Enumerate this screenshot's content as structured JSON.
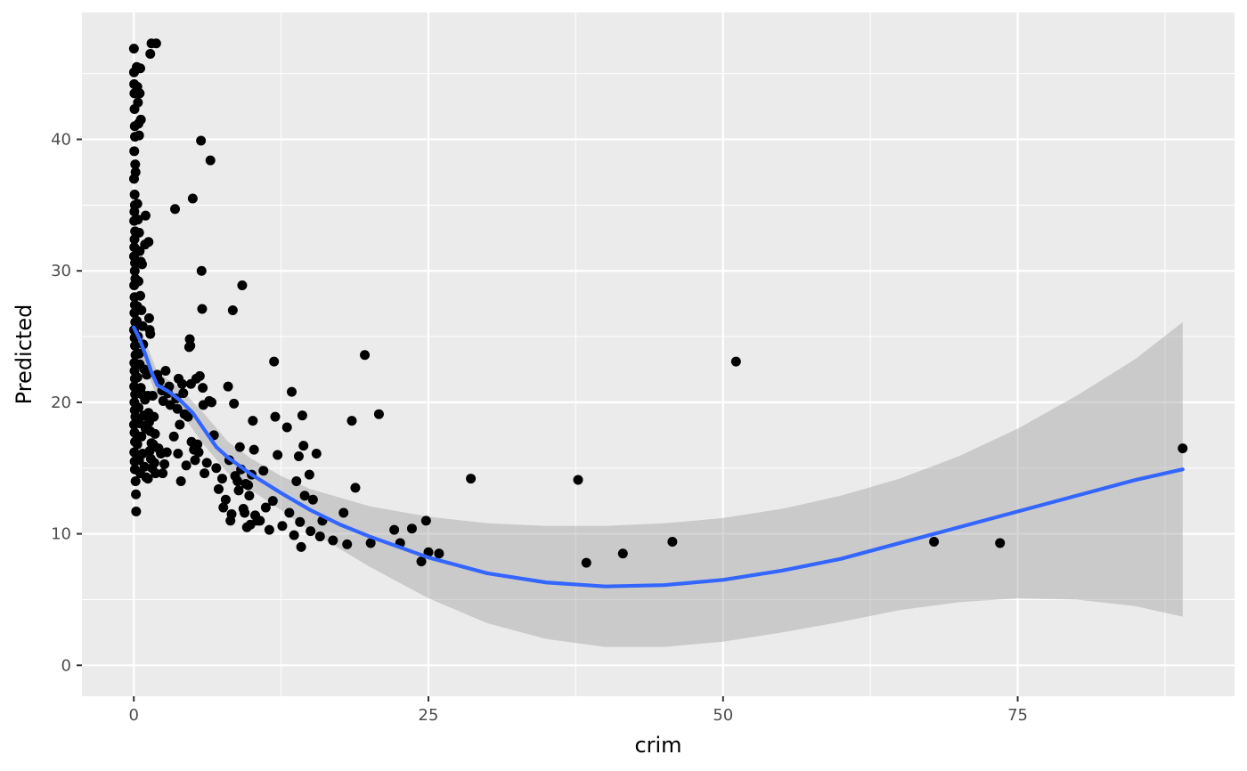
{
  "chart_data": {
    "type": "scatter",
    "xlabel": "crim",
    "ylabel": "Predicted",
    "xlim": [
      -4.4,
      93.4
    ],
    "ylim": [
      -2.35,
      49.65
    ],
    "x_ticks": [
      0,
      25,
      50,
      75
    ],
    "x_tick_labels": [
      "0",
      "25",
      "50",
      "75"
    ],
    "x_minor_ticks": [
      12.5,
      37.5,
      62.5,
      87.5
    ],
    "y_ticks": [
      0,
      10,
      20,
      30,
      40
    ],
    "y_tick_labels": [
      "0",
      "10",
      "20",
      "30",
      "40"
    ],
    "y_minor_ticks": [
      5,
      15,
      25,
      35,
      45
    ],
    "grid": true,
    "colors": {
      "panel": "#ebebeb",
      "grid": "#ffffff",
      "points": "#000000",
      "smooth_line": "#3366ff",
      "ribbon": "#999999"
    },
    "points": [
      [
        0.01,
        46.9
      ],
      [
        0.02,
        45.1
      ],
      [
        0.03,
        44.2
      ],
      [
        0.05,
        43.5
      ],
      [
        0.06,
        42.3
      ],
      [
        0.08,
        41.0
      ],
      [
        0.1,
        40.2
      ],
      [
        0.04,
        39.1
      ],
      [
        0.12,
        38.1
      ],
      [
        0.15,
        37.5
      ],
      [
        0.02,
        37.0
      ],
      [
        0.07,
        35.8
      ],
      [
        0.09,
        35.0
      ],
      [
        0.05,
        34.5
      ],
      [
        0.03,
        33.8
      ],
      [
        0.11,
        33.0
      ],
      [
        0.06,
        32.4
      ],
      [
        0.04,
        31.8
      ],
      [
        0.02,
        31.1
      ],
      [
        0.1,
        30.6
      ],
      [
        0.08,
        30.0
      ],
      [
        0.13,
        29.4
      ],
      [
        0.03,
        28.9
      ],
      [
        0.06,
        28.0
      ],
      [
        0.09,
        27.4
      ],
      [
        0.05,
        26.8
      ],
      [
        0.12,
        26.1
      ],
      [
        0.02,
        25.5
      ],
      [
        0.07,
        24.9
      ],
      [
        0.1,
        24.3
      ],
      [
        0.14,
        23.6
      ],
      [
        0.04,
        23.0
      ],
      [
        0.06,
        22.4
      ],
      [
        0.09,
        21.8
      ],
      [
        0.03,
        21.2
      ],
      [
        0.11,
        20.6
      ],
      [
        0.05,
        20.0
      ],
      [
        0.08,
        19.4
      ],
      [
        0.13,
        18.9
      ],
      [
        0.02,
        18.3
      ],
      [
        0.06,
        17.7
      ],
      [
        0.1,
        17.0
      ],
      [
        0.04,
        16.2
      ],
      [
        0.07,
        15.5
      ],
      [
        0.09,
        14.9
      ],
      [
        0.15,
        14.0
      ],
      [
        0.18,
        13.0
      ],
      [
        0.2,
        11.7
      ],
      [
        0.25,
        45.5
      ],
      [
        0.3,
        44.0
      ],
      [
        0.35,
        42.8
      ],
      [
        0.4,
        41.2
      ],
      [
        0.45,
        40.3
      ],
      [
        0.5,
        43.5
      ],
      [
        0.55,
        45.4
      ],
      [
        0.6,
        41.5
      ],
      [
        0.3,
        35.1
      ],
      [
        0.35,
        33.9
      ],
      [
        0.45,
        32.9
      ],
      [
        0.5,
        31.5
      ],
      [
        0.6,
        30.7
      ],
      [
        0.7,
        30.5
      ],
      [
        0.4,
        29.2
      ],
      [
        0.55,
        28.1
      ],
      [
        0.3,
        27.3
      ],
      [
        0.65,
        27.0
      ],
      [
        0.25,
        26.2
      ],
      [
        0.75,
        25.8
      ],
      [
        0.35,
        25.0
      ],
      [
        0.8,
        24.4
      ],
      [
        0.45,
        23.7
      ],
      [
        0.5,
        22.9
      ],
      [
        0.9,
        22.5
      ],
      [
        0.3,
        21.9
      ],
      [
        0.6,
        21.1
      ],
      [
        0.7,
        20.6
      ],
      [
        0.95,
        20.2
      ],
      [
        0.4,
        19.6
      ],
      [
        0.85,
        19.0
      ],
      [
        0.5,
        18.4
      ],
      [
        1.0,
        18.0
      ],
      [
        0.65,
        17.4
      ],
      [
        0.3,
        16.8
      ],
      [
        0.75,
        16.1
      ],
      [
        0.45,
        15.6
      ],
      [
        0.9,
        15.1
      ],
      [
        0.55,
        14.6
      ],
      [
        1.05,
        14.3
      ],
      [
        1.1,
        22.1
      ],
      [
        1.2,
        20.5
      ],
      [
        1.25,
        19.2
      ],
      [
        1.3,
        18.5
      ],
      [
        1.4,
        17.8
      ],
      [
        1.5,
        16.9
      ],
      [
        1.35,
        16.3
      ],
      [
        1.45,
        15.7
      ],
      [
        1.55,
        15.0
      ],
      [
        1.2,
        14.2
      ],
      [
        1.3,
        26.4
      ],
      [
        1.35,
        25.5
      ],
      [
        1.4,
        25.2
      ],
      [
        1.25,
        32.2
      ],
      [
        0.95,
        32.0
      ],
      [
        1.0,
        34.2
      ],
      [
        1.5,
        47.3
      ],
      [
        1.9,
        47.3
      ],
      [
        1.4,
        46.5
      ],
      [
        1.6,
        20.5
      ],
      [
        1.7,
        18.9
      ],
      [
        1.8,
        17.6
      ],
      [
        1.65,
        16.8
      ],
      [
        1.75,
        15.4
      ],
      [
        1.85,
        14.6
      ],
      [
        2.0,
        22.1
      ],
      [
        2.2,
        21.6
      ],
      [
        2.4,
        20.9
      ],
      [
        2.5,
        20.1
      ],
      [
        2.1,
        16.5
      ],
      [
        2.3,
        16.1
      ],
      [
        2.6,
        15.3
      ],
      [
        2.45,
        14.6
      ],
      [
        2.7,
        22.4
      ],
      [
        2.9,
        20.7
      ],
      [
        3.0,
        21.2
      ],
      [
        3.1,
        19.8
      ],
      [
        2.8,
        16.2
      ],
      [
        3.5,
        34.7
      ],
      [
        3.4,
        17.4
      ],
      [
        3.6,
        20.3
      ],
      [
        3.8,
        21.8
      ],
      [
        3.7,
        19.5
      ],
      [
        3.9,
        18.3
      ],
      [
        3.75,
        16.1
      ],
      [
        4.0,
        14.0
      ],
      [
        4.1,
        21.4
      ],
      [
        4.2,
        20.7
      ],
      [
        4.3,
        19.1
      ],
      [
        4.45,
        15.2
      ],
      [
        4.6,
        18.9
      ],
      [
        4.7,
        24.2
      ],
      [
        4.75,
        24.8
      ],
      [
        4.8,
        24.3
      ],
      [
        4.85,
        21.4
      ],
      [
        4.9,
        17.0
      ],
      [
        5.0,
        35.5
      ],
      [
        5.1,
        16.4
      ],
      [
        5.2,
        15.6
      ],
      [
        5.3,
        21.8
      ],
      [
        5.4,
        16.8
      ],
      [
        5.5,
        16.2
      ],
      [
        5.6,
        22.0
      ],
      [
        5.7,
        39.9
      ],
      [
        5.75,
        30.0
      ],
      [
        5.8,
        27.1
      ],
      [
        5.85,
        21.1
      ],
      [
        5.9,
        19.8
      ],
      [
        6.0,
        14.6
      ],
      [
        6.2,
        15.4
      ],
      [
        6.4,
        20.1
      ],
      [
        6.5,
        38.4
      ],
      [
        6.6,
        20.0
      ],
      [
        6.8,
        17.5
      ],
      [
        7.0,
        15.0
      ],
      [
        7.2,
        13.4
      ],
      [
        7.5,
        14.2
      ],
      [
        7.6,
        12.0
      ],
      [
        7.8,
        12.6
      ],
      [
        8.0,
        21.2
      ],
      [
        8.1,
        15.6
      ],
      [
        8.2,
        11.0
      ],
      [
        8.3,
        11.5
      ],
      [
        8.4,
        27.0
      ],
      [
        8.5,
        19.9
      ],
      [
        8.6,
        14.4
      ],
      [
        8.8,
        14.0
      ],
      [
        8.9,
        13.3
      ],
      [
        9.0,
        16.6
      ],
      [
        9.1,
        14.9
      ],
      [
        9.2,
        28.9
      ],
      [
        9.3,
        11.9
      ],
      [
        9.4,
        11.6
      ],
      [
        9.5,
        13.8
      ],
      [
        9.6,
        10.5
      ],
      [
        9.7,
        13.7
      ],
      [
        9.8,
        12.9
      ],
      [
        9.9,
        10.7
      ],
      [
        10.0,
        14.5
      ],
      [
        10.1,
        18.6
      ],
      [
        10.2,
        16.4
      ],
      [
        10.3,
        11.4
      ],
      [
        10.5,
        11.0
      ],
      [
        10.7,
        11.0
      ],
      [
        11.0,
        14.8
      ],
      [
        11.2,
        12.0
      ],
      [
        11.5,
        10.3
      ],
      [
        11.8,
        12.5
      ],
      [
        11.9,
        23.1
      ],
      [
        12.0,
        18.9
      ],
      [
        12.2,
        16.0
      ],
      [
        12.6,
        10.6
      ],
      [
        13.0,
        18.1
      ],
      [
        13.2,
        11.6
      ],
      [
        13.4,
        20.8
      ],
      [
        13.6,
        9.9
      ],
      [
        13.8,
        14.0
      ],
      [
        14.0,
        15.9
      ],
      [
        14.1,
        10.9
      ],
      [
        14.2,
        9.0
      ],
      [
        14.3,
        19.0
      ],
      [
        14.4,
        16.7
      ],
      [
        14.5,
        12.9
      ],
      [
        14.9,
        14.5
      ],
      [
        15.0,
        10.2
      ],
      [
        15.2,
        12.6
      ],
      [
        15.5,
        16.1
      ],
      [
        15.8,
        9.8
      ],
      [
        16.0,
        11.0
      ],
      [
        16.9,
        9.5
      ],
      [
        17.8,
        11.6
      ],
      [
        18.1,
        9.2
      ],
      [
        18.5,
        18.6
      ],
      [
        18.8,
        13.5
      ],
      [
        19.6,
        23.6
      ],
      [
        20.1,
        9.3
      ],
      [
        20.8,
        19.1
      ],
      [
        22.1,
        10.3
      ],
      [
        22.6,
        9.3
      ],
      [
        23.6,
        10.4
      ],
      [
        24.4,
        7.9
      ],
      [
        24.8,
        11.0
      ],
      [
        25.0,
        8.6
      ],
      [
        25.9,
        8.5
      ],
      [
        28.6,
        14.2
      ],
      [
        37.7,
        14.1
      ],
      [
        38.4,
        7.8
      ],
      [
        41.5,
        8.5
      ],
      [
        45.7,
        9.4
      ],
      [
        51.1,
        23.1
      ],
      [
        67.9,
        9.4
      ],
      [
        73.5,
        9.3
      ],
      [
        89.0,
        16.5
      ]
    ],
    "smooth_line": [
      [
        0,
        25.7
      ],
      [
        0.5,
        24.8
      ],
      [
        1.0,
        23.6
      ],
      [
        1.5,
        22.3
      ],
      [
        2.0,
        21.3
      ],
      [
        3.0,
        20.8
      ],
      [
        4.0,
        20.1
      ],
      [
        5.0,
        19.2
      ],
      [
        6.0,
        17.9
      ],
      [
        7.0,
        16.6
      ],
      [
        8.0,
        15.8
      ],
      [
        10.0,
        14.5
      ],
      [
        12.5,
        13.1
      ],
      [
        15.0,
        11.8
      ],
      [
        17.5,
        10.7
      ],
      [
        20.0,
        9.8
      ],
      [
        25.0,
        8.2
      ],
      [
        30.0,
        7.0
      ],
      [
        35.0,
        6.3
      ],
      [
        40.0,
        6.0
      ],
      [
        45.0,
        6.1
      ],
      [
        50.0,
        6.5
      ],
      [
        55.0,
        7.2
      ],
      [
        60.0,
        8.1
      ],
      [
        65.0,
        9.3
      ],
      [
        70.0,
        10.5
      ],
      [
        75.0,
        11.7
      ],
      [
        80.0,
        12.9
      ],
      [
        85.0,
        14.1
      ],
      [
        89.0,
        14.9
      ]
    ],
    "ribbon_upper": [
      [
        0,
        27.0
      ],
      [
        1.0,
        24.6
      ],
      [
        2.0,
        22.3
      ],
      [
        4.0,
        21.0
      ],
      [
        6.0,
        19.1
      ],
      [
        8.0,
        17.0
      ],
      [
        10.0,
        15.7
      ],
      [
        12.5,
        14.4
      ],
      [
        15.0,
        13.4
      ],
      [
        20.0,
        12.1
      ],
      [
        25.0,
        11.3
      ],
      [
        30.0,
        10.8
      ],
      [
        35.0,
        10.6
      ],
      [
        40.0,
        10.6
      ],
      [
        45.0,
        10.8
      ],
      [
        50.0,
        11.2
      ],
      [
        55.0,
        11.9
      ],
      [
        60.0,
        12.9
      ],
      [
        65.0,
        14.2
      ],
      [
        70.0,
        15.9
      ],
      [
        75.0,
        18.0
      ],
      [
        80.0,
        20.5
      ],
      [
        85.0,
        23.3
      ],
      [
        89.0,
        26.1
      ]
    ],
    "ribbon_lower": [
      [
        0,
        24.4
      ],
      [
        1.0,
        22.6
      ],
      [
        2.0,
        20.3
      ],
      [
        4.0,
        19.2
      ],
      [
        6.0,
        16.7
      ],
      [
        8.0,
        14.6
      ],
      [
        10.0,
        13.3
      ],
      [
        12.5,
        11.8
      ],
      [
        15.0,
        10.2
      ],
      [
        20.0,
        7.5
      ],
      [
        25.0,
        5.1
      ],
      [
        30.0,
        3.2
      ],
      [
        35.0,
        2.0
      ],
      [
        40.0,
        1.4
      ],
      [
        45.0,
        1.4
      ],
      [
        50.0,
        1.8
      ],
      [
        55.0,
        2.5
      ],
      [
        60.0,
        3.3
      ],
      [
        65.0,
        4.2
      ],
      [
        70.0,
        4.8
      ],
      [
        75.0,
        5.1
      ],
      [
        80.0,
        5.0
      ],
      [
        85.0,
        4.5
      ],
      [
        89.0,
        3.7
      ]
    ]
  }
}
